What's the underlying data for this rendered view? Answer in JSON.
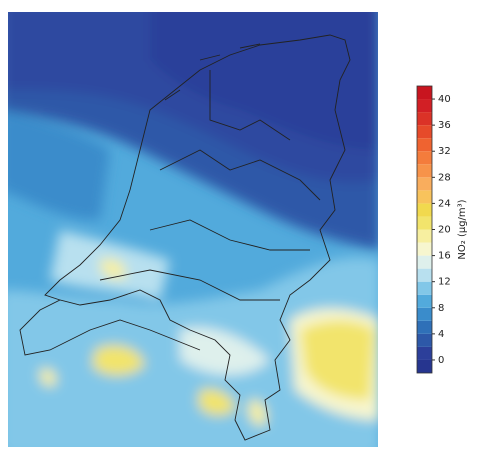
{
  "colorbar": {
    "label": "NO₂ (μg/m³)",
    "lim": [
      -2,
      42
    ],
    "ticks": [
      0,
      4,
      8,
      12,
      16,
      20,
      24,
      28,
      32,
      36,
      40
    ],
    "levels": [
      -2,
      0,
      2,
      4,
      6,
      8,
      10,
      12,
      14,
      16,
      18,
      20,
      22,
      24,
      26,
      28,
      30,
      32,
      34,
      36,
      38,
      40,
      42
    ],
    "colors": [
      "#26358f",
      "#2c3f9a",
      "#2d58a8",
      "#2f70b8",
      "#3a8ccb",
      "#52aadc",
      "#82c7e8",
      "#b8e0ef",
      "#def0ec",
      "#f7f6cf",
      "#f7efa0",
      "#f2e46c",
      "#f1d94e",
      "#f8c35c",
      "#f9ad5d",
      "#f7934a",
      "#f47c3c",
      "#ef6330",
      "#e64a2a",
      "#db3227",
      "#d21f25",
      "#c8151f"
    ]
  }
}
